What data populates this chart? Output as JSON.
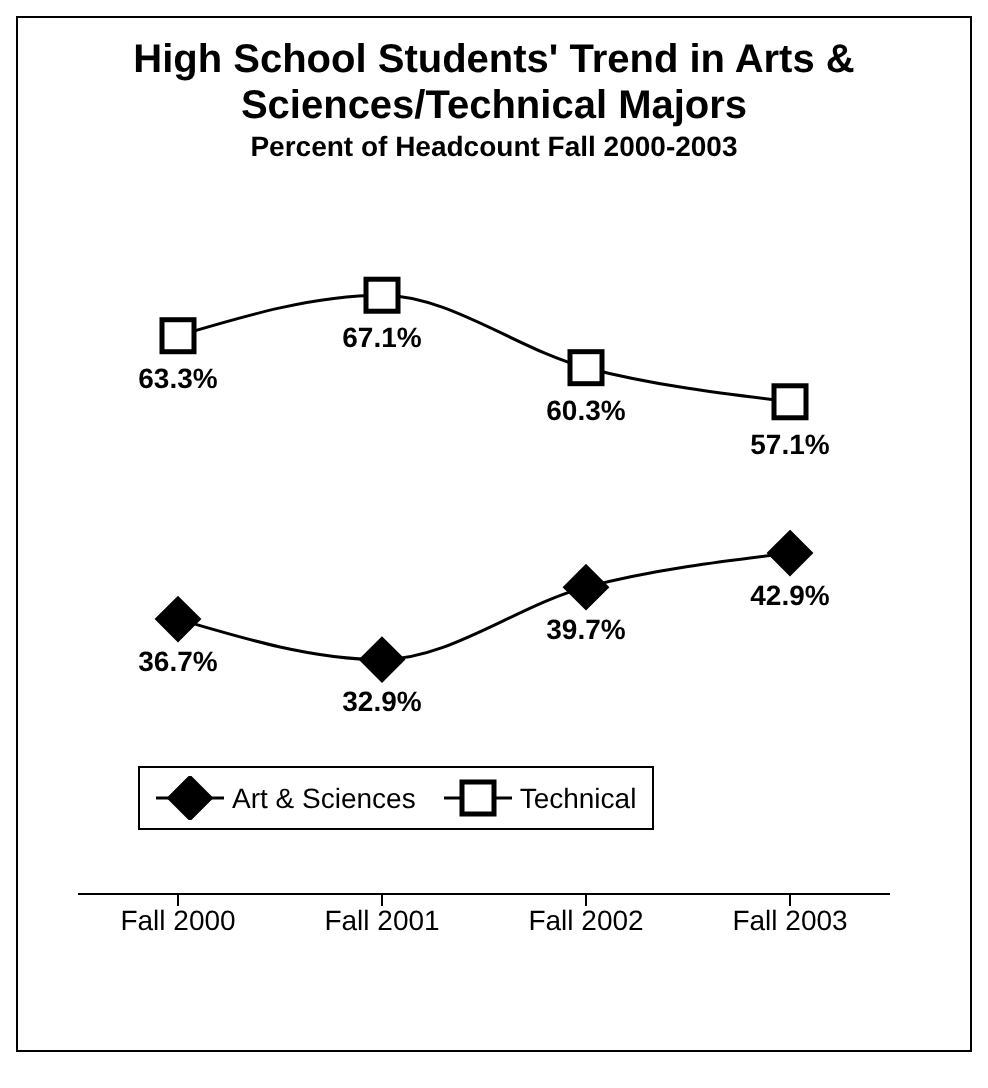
{
  "chart_data": {
    "type": "line",
    "title": "High School Students' Trend in Arts & Sciences/Technical Majors",
    "subtitle": "Percent of Headcount Fall 2000-2003",
    "categories": [
      "Fall 2000",
      "Fall 2001",
      "Fall 2002",
      "Fall 2003"
    ],
    "series": [
      {
        "name": "Art & Sciences",
        "color": "#000000",
        "marker": "diamond",
        "values": [
          36.7,
          32.9,
          39.7,
          42.9
        ],
        "value_labels": [
          "36.7%",
          "32.9%",
          "39.7%",
          "42.9%"
        ]
      },
      {
        "name": "Technical",
        "color": "#000000",
        "marker": "square",
        "values": [
          63.3,
          67.1,
          60.3,
          57.1
        ],
        "value_labels": [
          "63.3%",
          "67.1%",
          "60.3%",
          "57.1%"
        ]
      }
    ],
    "data_labels": true,
    "legend": "bottom",
    "grid": false
  }
}
